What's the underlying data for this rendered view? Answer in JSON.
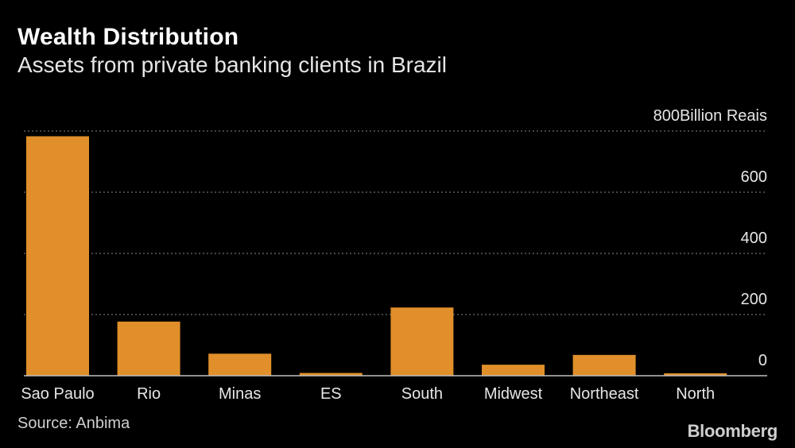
{
  "header": {
    "title": "Wealth Distribution",
    "subtitle": "Assets from private banking clients in Brazil"
  },
  "footer": {
    "source": "Source: Anbima",
    "brand": "Bloomberg"
  },
  "colors": {
    "background": "#000000",
    "bar": "#E08F2A",
    "grid": "#888888",
    "text": "#ffffff"
  },
  "chart_data": {
    "type": "bar",
    "title": "Wealth Distribution",
    "subtitle": "Assets from private banking clients in Brazil",
    "unit_label": "Billion Reais",
    "categories": [
      "Sao Paulo",
      "Rio",
      "Minas",
      "ES",
      "South",
      "Midwest",
      "Northeast",
      "North"
    ],
    "values": [
      783,
      177,
      72,
      9,
      223,
      36,
      68,
      8
    ],
    "ylim": [
      0,
      800
    ],
    "yticks": [
      0,
      200,
      400,
      600,
      800
    ],
    "ytick_labels": [
      "0",
      "200",
      "400",
      "600",
      "800"
    ],
    "y_axis_side": "right",
    "grid": true
  }
}
